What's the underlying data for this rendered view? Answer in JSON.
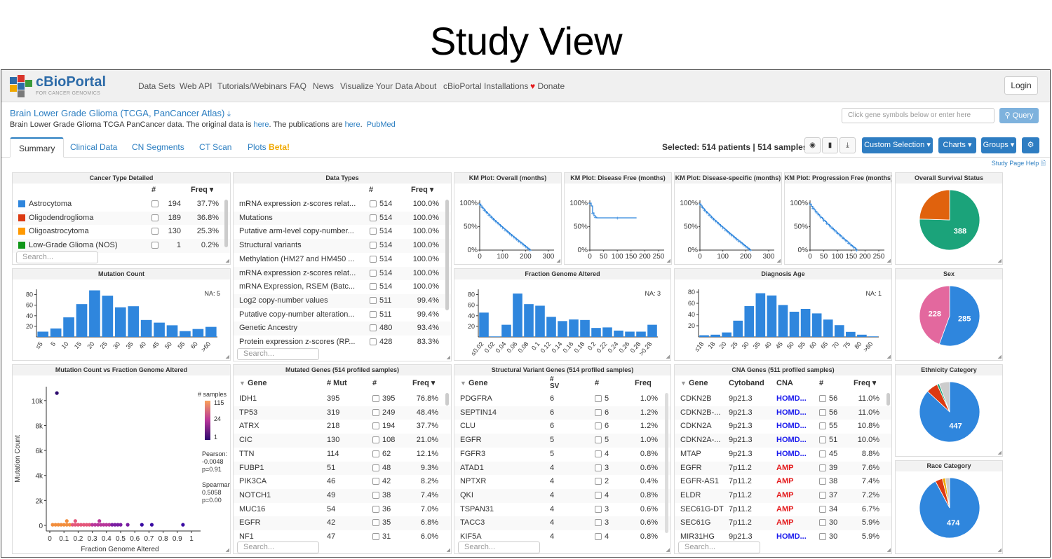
{
  "figure_title": "Study View",
  "brand": {
    "name": "cBioPortal",
    "tagline": "FOR CANCER GENOMICS"
  },
  "nav": [
    "Data Sets",
    "Web API",
    "Tutorials/Webinars",
    "FAQ",
    "News",
    "Visualize Your Data",
    "About",
    "cBioPortal Installations",
    "Donate"
  ],
  "login_label": "Login",
  "study": {
    "title": "Brain Lower Grade Glioma (TCGA, PanCancer Atlas)",
    "desc_prefix": "Brain Lower Grade Glioma TCGA PanCancer data. The original data is ",
    "here1": "here",
    "desc_mid": ". The publications are ",
    "here2": "here",
    "dot": ".",
    "pubmed": "PubMed"
  },
  "query": {
    "placeholder": "Click gene symbols below or enter here",
    "button": "Query"
  },
  "tabs": [
    "Summary",
    "Clinical Data",
    "CN Segments",
    "CT Scan",
    "Plots"
  ],
  "beta": "Beta!",
  "selected": {
    "prefix": "Selected: ",
    "patients": "514 patients",
    "sep": " | ",
    "samples": "514 samples"
  },
  "buttons": {
    "custom": "Custom Selection ▾",
    "charts": "Charts ▾",
    "groups": "Groups ▾"
  },
  "help_link": "Study Page Help 🗎",
  "search_placeholder": "Search...",
  "colors": {
    "brand_blue": "#2e7dc2",
    "bar_blue": "#2f86dd",
    "amp": "#e41a1c",
    "homdel": "#1a1aee"
  },
  "cancer_type": {
    "title": "Cancer Type Detailed",
    "headers": {
      "count": "#",
      "freq": "Freq ▾"
    },
    "rows": [
      {
        "name": "Astrocytoma",
        "color": "#2f86dd",
        "count": "194",
        "freq": "37.7%"
      },
      {
        "name": "Oligodendroglioma",
        "color": "#dc3912",
        "count": "189",
        "freq": "36.8%"
      },
      {
        "name": "Oligoastrocytoma",
        "color": "#ff9900",
        "count": "130",
        "freq": "25.3%"
      },
      {
        "name": "Low-Grade Glioma (NOS)",
        "color": "#109618",
        "count": "1",
        "freq": "0.2%"
      }
    ]
  },
  "data_types": {
    "title": "Data Types",
    "headers": {
      "count": "#",
      "freq": "Freq ▾"
    },
    "rows": [
      {
        "name": "mRNA expression z-scores relat...",
        "count": "514",
        "freq": "100.0%"
      },
      {
        "name": "Mutations",
        "count": "514",
        "freq": "100.0%"
      },
      {
        "name": "Putative arm-level copy-number...",
        "count": "514",
        "freq": "100.0%"
      },
      {
        "name": "Structural variants",
        "count": "514",
        "freq": "100.0%"
      },
      {
        "name": "Methylation (HM27 and HM450 ...",
        "count": "514",
        "freq": "100.0%"
      },
      {
        "name": "mRNA expression z-scores relat...",
        "count": "514",
        "freq": "100.0%"
      },
      {
        "name": "mRNA Expression, RSEM (Batc...",
        "count": "514",
        "freq": "100.0%"
      },
      {
        "name": "Log2 copy-number values",
        "count": "511",
        "freq": "99.4%"
      },
      {
        "name": "Putative copy-number alteration...",
        "count": "511",
        "freq": "99.4%"
      },
      {
        "name": "Genetic Ancestry",
        "count": "480",
        "freq": "93.4%"
      },
      {
        "name": "Protein expression z-scores (RP...",
        "count": "428",
        "freq": "83.3%"
      }
    ]
  },
  "km_plots": [
    {
      "title": "KM Plot: Overall (months)",
      "xticks": [
        "0",
        "100",
        "200",
        "300"
      ],
      "xmax": 300
    },
    {
      "title": "KM Plot: Disease Free (months)",
      "xticks": [
        "0",
        "50",
        "100",
        "150",
        "200",
        "250"
      ],
      "xmax": 250
    },
    {
      "title": "KM Plot: Disease-specific (months)",
      "xticks": [
        "0",
        "100",
        "200",
        "300"
      ],
      "xmax": 300
    },
    {
      "title": "KM Plot: Progression Free (months)",
      "xticks": [
        "0",
        "50",
        "100",
        "150",
        "200",
        "250"
      ],
      "xmax": 250
    }
  ],
  "km_yticks": [
    "100%",
    "50%",
    "0%"
  ],
  "survival_status": {
    "title": "Overall Survival Status",
    "label": "388",
    "slices": [
      {
        "value": 388,
        "color": "#1ba37a"
      },
      {
        "value": 126,
        "color": "#e0620d"
      }
    ]
  },
  "sex": {
    "title": "Sex",
    "labels": [
      "285",
      "228"
    ],
    "slices": [
      {
        "value": 285,
        "color": "#2f86dd"
      },
      {
        "value": 228,
        "color": "#e3689e"
      }
    ]
  },
  "ethnicity": {
    "title": "Ethnicity Category",
    "label": "447",
    "slices": [
      {
        "value": 447,
        "color": "#2f86dd"
      },
      {
        "value": 32,
        "color": "#dc3912"
      },
      {
        "value": 6,
        "color": "#1ba37a"
      },
      {
        "value": 29,
        "color": "#cccccc"
      }
    ]
  },
  "race": {
    "title": "Race Category",
    "label": "474",
    "slices": [
      {
        "value": 474,
        "color": "#2f86dd"
      },
      {
        "value": 20,
        "color": "#dc3912"
      },
      {
        "value": 8,
        "color": "#f0a800"
      },
      {
        "value": 12,
        "color": "#cccccc"
      }
    ]
  },
  "chart_data": [
    {
      "type": "bar",
      "title": "Mutation Count",
      "na": "NA: 5",
      "categories": [
        "≤5",
        "5",
        "10",
        "15",
        "20",
        "25",
        "30",
        "35",
        "40",
        "45",
        "50",
        "55",
        "60",
        ">60"
      ],
      "values": [
        10,
        16,
        37,
        62,
        88,
        78,
        56,
        58,
        32,
        27,
        22,
        11,
        15,
        19
      ],
      "yticks": [
        "20",
        "40",
        "60",
        "80"
      ],
      "ylim": [
        0,
        90
      ]
    },
    {
      "type": "bar",
      "title": "Fraction Genome Altered",
      "na": "NA: 3",
      "categories": [
        "≤0.02",
        "0.02",
        "0.04",
        "0.06",
        "0.08",
        "0.1",
        "0.12",
        "0.14",
        "0.16",
        "0.18",
        "0.2",
        "0.22",
        "0.24",
        "0.26",
        "0.28",
        ">0.28"
      ],
      "values": [
        46,
        1,
        23,
        82,
        62,
        59,
        38,
        30,
        33,
        32,
        17,
        18,
        12,
        10,
        10,
        23
      ],
      "yticks": [
        "20",
        "40",
        "60",
        "80"
      ],
      "ylim": [
        0,
        90
      ]
    },
    {
      "type": "bar",
      "title": "Diagnosis Age",
      "na": "NA: 1",
      "categories": [
        "≤18",
        "18",
        "20",
        "25",
        "30",
        "35",
        "40",
        "45",
        "50",
        "55",
        "60",
        "65",
        "70",
        "75",
        "80",
        ">80"
      ],
      "values": [
        3,
        4,
        8,
        29,
        55,
        78,
        74,
        57,
        45,
        50,
        42,
        31,
        21,
        9,
        4,
        1
      ],
      "yticks": [
        "20",
        "40",
        "60",
        "80"
      ],
      "ylim": [
        0,
        85
      ]
    },
    {
      "type": "scatter",
      "title": "Mutation Count vs Fraction Genome Altered",
      "xlabel": "Fraction Genome Altered",
      "ylabel": "Mutation Count",
      "xticks": [
        "0",
        "0.1",
        "0.2",
        "0.3",
        "0.4",
        "0.5",
        "0.6",
        "0.7",
        "0.8",
        "0.9",
        "1"
      ],
      "yticks": [
        "0",
        "2k",
        "4k",
        "6k",
        "8k",
        "10k"
      ],
      "legend_title": "# samples",
      "legend_values": [
        "115",
        "24",
        "1"
      ],
      "pearson_label": "Pearson:",
      "pearson": "-0.0048",
      "pearson_p": "p=0.91",
      "spearman_label": "Spearman:",
      "spearman": "0.5058",
      "spearman_p": "p=0.00",
      "points": [
        [
          0.05,
          10600
        ],
        [
          0.02,
          50
        ],
        [
          0.04,
          50
        ],
        [
          0.06,
          50
        ],
        [
          0.08,
          50
        ],
        [
          0.1,
          50
        ],
        [
          0.12,
          50
        ],
        [
          0.14,
          50
        ],
        [
          0.16,
          50
        ],
        [
          0.18,
          50
        ],
        [
          0.2,
          50
        ],
        [
          0.22,
          50
        ],
        [
          0.24,
          50
        ],
        [
          0.26,
          50
        ],
        [
          0.28,
          50
        ],
        [
          0.3,
          50
        ],
        [
          0.32,
          50
        ],
        [
          0.34,
          50
        ],
        [
          0.36,
          50
        ],
        [
          0.38,
          50
        ],
        [
          0.4,
          50
        ],
        [
          0.42,
          50
        ],
        [
          0.44,
          50
        ],
        [
          0.46,
          50
        ],
        [
          0.48,
          50
        ],
        [
          0.5,
          50
        ],
        [
          0.55,
          50
        ],
        [
          0.65,
          50
        ],
        [
          0.72,
          50
        ],
        [
          0.94,
          50
        ],
        [
          0.12,
          350
        ],
        [
          0.18,
          350
        ],
        [
          0.35,
          350
        ]
      ]
    }
  ],
  "mutated_genes": {
    "title": "Mutated Genes (514 profiled samples)",
    "headers": {
      "gene": "Gene",
      "mut": "# Mut",
      "count": "#",
      "freq": "Freq ▾"
    },
    "rows": [
      {
        "gene": "IDH1",
        "mut": "395",
        "count": "395",
        "freq": "76.8%"
      },
      {
        "gene": "TP53",
        "mut": "319",
        "count": "249",
        "freq": "48.4%"
      },
      {
        "gene": "ATRX",
        "mut": "218",
        "count": "194",
        "freq": "37.7%"
      },
      {
        "gene": "CIC",
        "mut": "130",
        "count": "108",
        "freq": "21.0%"
      },
      {
        "gene": "TTN",
        "mut": "114",
        "count": "62",
        "freq": "12.1%"
      },
      {
        "gene": "FUBP1",
        "mut": "51",
        "count": "48",
        "freq": "9.3%"
      },
      {
        "gene": "PIK3CA",
        "mut": "46",
        "count": "42",
        "freq": "8.2%"
      },
      {
        "gene": "NOTCH1",
        "mut": "49",
        "count": "38",
        "freq": "7.4%"
      },
      {
        "gene": "MUC16",
        "mut": "54",
        "count": "36",
        "freq": "7.0%"
      },
      {
        "gene": "EGFR",
        "mut": "42",
        "count": "35",
        "freq": "6.8%"
      },
      {
        "gene": "NF1",
        "mut": "47",
        "count": "31",
        "freq": "6.0%"
      }
    ]
  },
  "sv_genes": {
    "title": "Structural Variant Genes (514 profiled samples)",
    "headers": {
      "gene": "Gene",
      "sv1": "#",
      "sv2": "SV",
      "count": "#",
      "freq": "Freq"
    },
    "rows": [
      {
        "gene": "PDGFRA",
        "sv": "6",
        "count": "5",
        "freq": "1.0%"
      },
      {
        "gene": "SEPTIN14",
        "sv": "6",
        "count": "6",
        "freq": "1.2%"
      },
      {
        "gene": "CLU",
        "sv": "6",
        "count": "6",
        "freq": "1.2%"
      },
      {
        "gene": "EGFR",
        "sv": "5",
        "count": "5",
        "freq": "1.0%"
      },
      {
        "gene": "FGFR3",
        "sv": "5",
        "count": "4",
        "freq": "0.8%"
      },
      {
        "gene": "ATAD1",
        "sv": "4",
        "count": "3",
        "freq": "0.6%"
      },
      {
        "gene": "NPTXR",
        "sv": "4",
        "count": "2",
        "freq": "0.4%"
      },
      {
        "gene": "QKI",
        "sv": "4",
        "count": "4",
        "freq": "0.8%"
      },
      {
        "gene": "TSPAN31",
        "sv": "4",
        "count": "3",
        "freq": "0.6%"
      },
      {
        "gene": "TACC3",
        "sv": "4",
        "count": "3",
        "freq": "0.6%"
      },
      {
        "gene": "KIF5A",
        "sv": "4",
        "count": "4",
        "freq": "0.8%"
      }
    ]
  },
  "cna_genes": {
    "title": "CNA Genes (511 profiled samples)",
    "headers": {
      "gene": "Gene",
      "cytoband": "Cytoband",
      "cna": "CNA",
      "count": "#",
      "freq": "Freq ▾"
    },
    "rows": [
      {
        "gene": "CDKN2B",
        "cytoband": "9p21.3",
        "cna": "HOMD...",
        "type": "homd",
        "count": "56",
        "freq": "11.0%"
      },
      {
        "gene": "CDKN2B-...",
        "cytoband": "9p21.3",
        "cna": "HOMD...",
        "type": "homd",
        "count": "56",
        "freq": "11.0%"
      },
      {
        "gene": "CDKN2A",
        "cytoband": "9p21.3",
        "cna": "HOMD...",
        "type": "homd",
        "count": "55",
        "freq": "10.8%"
      },
      {
        "gene": "CDKN2A-...",
        "cytoband": "9p21.3",
        "cna": "HOMD...",
        "type": "homd",
        "count": "51",
        "freq": "10.0%"
      },
      {
        "gene": "MTAP",
        "cytoband": "9p21.3",
        "cna": "HOMD...",
        "type": "homd",
        "count": "45",
        "freq": "8.8%"
      },
      {
        "gene": "EGFR",
        "cytoband": "7p11.2",
        "cna": "AMP",
        "type": "amp",
        "count": "39",
        "freq": "7.6%"
      },
      {
        "gene": "EGFR-AS1",
        "cytoband": "7p11.2",
        "cna": "AMP",
        "type": "amp",
        "count": "38",
        "freq": "7.4%"
      },
      {
        "gene": "ELDR",
        "cytoband": "7p11.2",
        "cna": "AMP",
        "type": "amp",
        "count": "37",
        "freq": "7.2%"
      },
      {
        "gene": "SEC61G-DT",
        "cytoband": "7p11.2",
        "cna": "AMP",
        "type": "amp",
        "count": "34",
        "freq": "6.7%"
      },
      {
        "gene": "SEC61G",
        "cytoband": "7p11.2",
        "cna": "AMP",
        "type": "amp",
        "count": "30",
        "freq": "5.9%"
      },
      {
        "gene": "MIR31HG",
        "cytoband": "9p21.3",
        "cna": "HOMD...",
        "type": "homd",
        "count": "30",
        "freq": "5.9%"
      }
    ]
  }
}
